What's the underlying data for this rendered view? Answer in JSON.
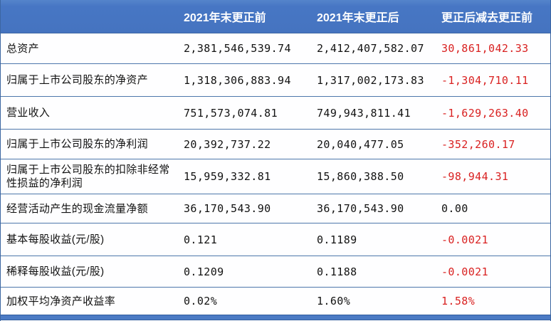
{
  "table": {
    "title_semantic": "2021年末财务数据更正对照表",
    "columns": {
      "label": "",
      "before": "2021年末更正前",
      "after": "2021年末更正后",
      "diff": "更正后减去更正前"
    },
    "rows": [
      {
        "label": "总资产",
        "before": "2,381,546,539.74",
        "after": "2,412,407,582.07",
        "diff": "30,861,042.33",
        "diff_color": "#d92121"
      },
      {
        "label": "归属于上市公司股东的净资产",
        "before": "1,318,306,883.94",
        "after": "1,317,002,173.83",
        "diff": "-1,304,710.11",
        "diff_color": "#d92121"
      },
      {
        "label": "营业收入",
        "before": "751,573,074.81",
        "after": "749,943,811.41",
        "diff": "-1,629,263.40",
        "diff_color": "#d92121"
      },
      {
        "label": "归属于上市公司股东的净利润",
        "before": "20,392,737.22",
        "after": "20,040,477.05",
        "diff": "-352,260.17",
        "diff_color": "#d92121"
      },
      {
        "label": "归属于上市公司股东的扣除非经常性损益的净利润",
        "before": "15,959,332.81",
        "after": "15,860,388.50",
        "diff": "-98,944.31",
        "diff_color": "#d92121"
      },
      {
        "label": "经营活动产生的现金流量净额",
        "before": "36,170,543.90",
        "after": "36,170,543.90",
        "diff": "0.00",
        "diff_color": "#121212"
      },
      {
        "label": "基本每股收益(元/股)",
        "before": "0.121",
        "after": "0.1189",
        "diff": "-0.0021",
        "diff_color": "#d92121"
      },
      {
        "label": "稀释每股收益(元/股)",
        "before": "0.1209",
        "after": "0.1188",
        "diff": "-0.0021",
        "diff_color": "#d92121"
      },
      {
        "label": "加权平均净资产收益率",
        "before": "0.02%",
        "after": "1.60%",
        "diff": "1.58%",
        "diff_color": "#d92121"
      }
    ],
    "colors": {
      "header_bg": "#4776c4",
      "negative_red": "#d92121",
      "body_text": "#121212",
      "grid_border": "#4d77ab"
    }
  }
}
